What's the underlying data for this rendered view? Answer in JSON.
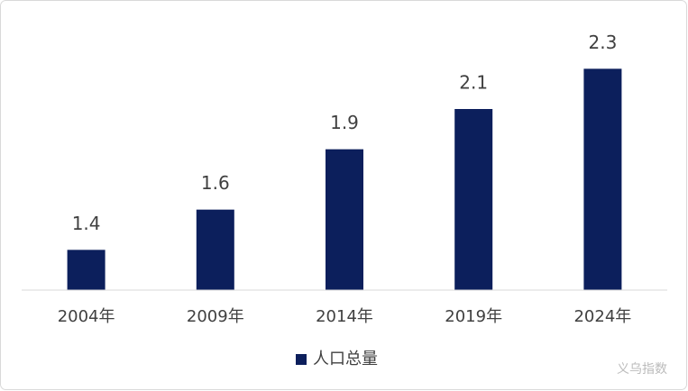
{
  "chart_data": {
    "type": "bar",
    "categories": [
      "2004年",
      "2009年",
      "2014年",
      "2019年",
      "2024年"
    ],
    "series": [
      {
        "name": "人口总量",
        "color": "#0c1f5c",
        "values": [
          1.4,
          1.6,
          1.9,
          2.1,
          2.3
        ]
      }
    ],
    "ylim": [
      1.2,
      2.4
    ],
    "legend": "bottom",
    "watermark": "义乌指数"
  }
}
